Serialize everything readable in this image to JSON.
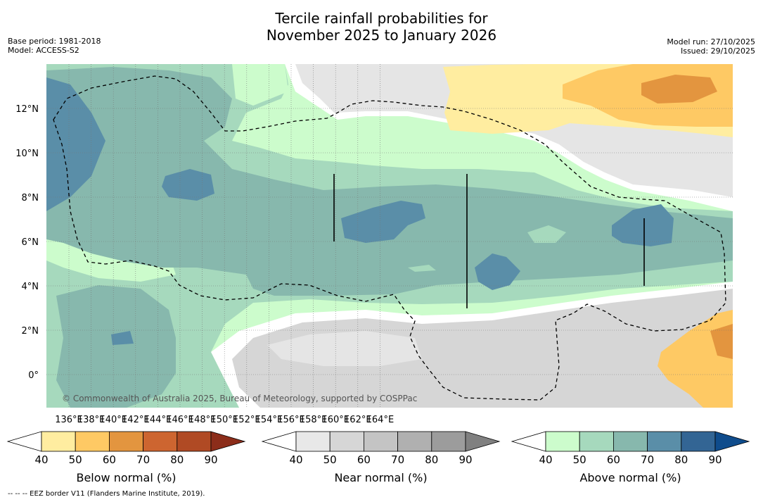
{
  "title": {
    "line1": "Tercile rainfall probabilities for",
    "line2": "November 2025 to January 2026"
  },
  "metadata": {
    "base_period": "Base period: 1981-2018",
    "model": "Model: ACCESS-S2",
    "model_run": "Model run: 27/10/2025",
    "issued": "Issued: 29/10/2025"
  },
  "map": {
    "x_ticks": [
      "136°E",
      "138°E",
      "140°E",
      "142°E",
      "144°E",
      "146°E",
      "148°E",
      "150°E",
      "152°E",
      "154°E",
      "156°E",
      "158°E",
      "160°E",
      "162°E",
      "164°E"
    ],
    "y_ticks": [
      "12°N",
      "10°N",
      "8°N",
      "6°N",
      "4°N",
      "2°N",
      "0°"
    ],
    "copyright": "© Commonwealth of Australia 2025, Bureau of Meteorology, supported by COSPPac"
  },
  "colorbars": {
    "below": {
      "label": "Below normal (%)",
      "ticks": [
        "40",
        "50",
        "60",
        "70",
        "80",
        "90"
      ],
      "colors": [
        "#ffffff",
        "#ffeda0",
        "#fec964",
        "#e3953f",
        "#cd6530",
        "#b04a24",
        "#8c2d1a"
      ]
    },
    "near": {
      "label": "Near normal (%)",
      "ticks": [
        "40",
        "50",
        "60",
        "70",
        "80",
        "90"
      ],
      "colors": [
        "#ffffff",
        "#e8e8e8",
        "#d6d6d6",
        "#c4c4c4",
        "#b0b0b0",
        "#9c9c9c",
        "#808080"
      ]
    },
    "above": {
      "label": "Above normal (%)",
      "ticks": [
        "40",
        "50",
        "60",
        "70",
        "80",
        "90"
      ],
      "colors": [
        "#ffffff",
        "#ccfccc",
        "#a6d9bd",
        "#87b8ad",
        "#5a8ea8",
        "#336594",
        "#0f4c8c"
      ]
    }
  },
  "footnote": "--  --  -- EEZ border V11 (Flanders Marine Institute, 2019)."
}
